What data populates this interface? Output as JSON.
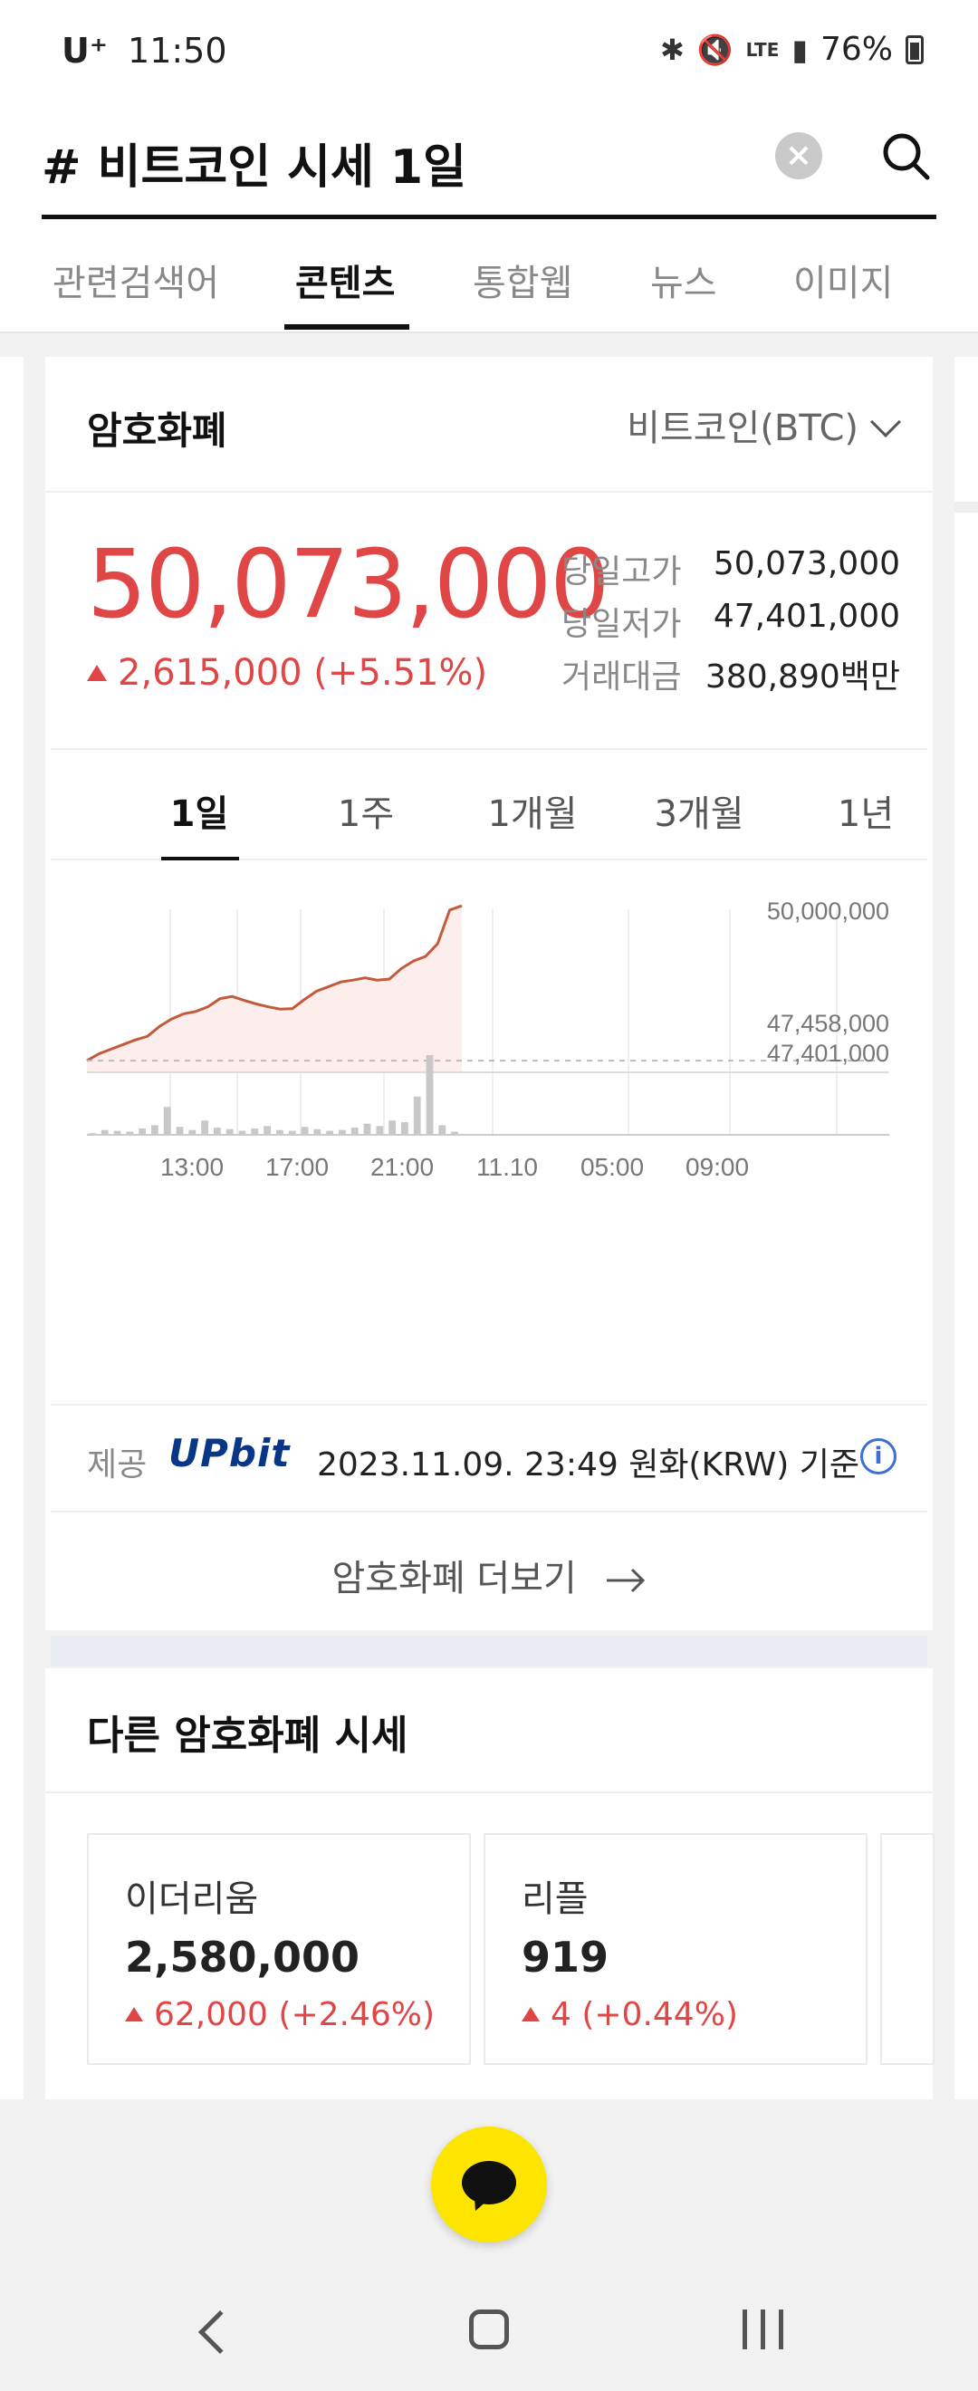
{
  "status_bar": {
    "carrier": "U⁺",
    "time": "11:50",
    "network": "LTE",
    "battery": "76%"
  },
  "search": {
    "query": "# 비트코인 시세 1일"
  },
  "tabs": [
    {
      "label": "관련검색어"
    },
    {
      "label": "콘텐츠"
    },
    {
      "label": "통합웹"
    },
    {
      "label": "뉴스"
    },
    {
      "label": "이미지"
    }
  ],
  "crypto": {
    "title": "암호화폐",
    "selected_coin": "비트코인(BTC)",
    "price": "50,073,000",
    "change": "2,615,000 (+5.51%)",
    "stats": [
      {
        "label": "당일고가",
        "value": "50,073,000"
      },
      {
        "label": "당일저가",
        "value": "47,401,000"
      },
      {
        "label": "거래대금",
        "value": "380,890백만"
      }
    ],
    "periods": [
      {
        "label": "1일"
      },
      {
        "label": "1주"
      },
      {
        "label": "1개월"
      },
      {
        "label": "3개월"
      },
      {
        "label": "1년"
      }
    ],
    "provider_label": "제공",
    "provider_name": "UPbit",
    "provider_info": "2023.11.09. 23:49 원화(KRW) 기준",
    "more_label": "암호화폐 더보기"
  },
  "chart_data": {
    "type": "line",
    "title": "",
    "xlabel": "",
    "ylabel": "",
    "x_ticks": [
      "13:00",
      "17:00",
      "21:00",
      "11.10",
      "05:00",
      "09:00"
    ],
    "y_ticks": [
      "50,000,000",
      "47,458,000",
      "47,401,000"
    ],
    "ylim": [
      47200000,
      50200000
    ],
    "series": [
      {
        "values": [
          47401000,
          47520000,
          47600000,
          47680000,
          47760000,
          47820000,
          47990000,
          48120000,
          48210000,
          48250000,
          48330000,
          48470000,
          48510000,
          48440000,
          48380000,
          48330000,
          48290000,
          48300000,
          48460000,
          48600000,
          48680000,
          48760000,
          48790000,
          48830000,
          48790000,
          48810000,
          48990000,
          49120000,
          49200000,
          49420000,
          50000000,
          50073000
        ]
      }
    ],
    "volume": [
      2,
      6,
      5,
      4,
      8,
      12,
      35,
      10,
      6,
      18,
      9,
      7,
      5,
      8,
      11,
      6,
      5,
      10,
      7,
      5,
      6,
      9,
      14,
      11,
      18,
      16,
      48,
      100,
      12,
      4
    ],
    "colors": {
      "line": "#c45a3c",
      "fill": "#fdeeee",
      "volume": "#c8c8c8"
    }
  },
  "other_coins": {
    "title": "다른 암호화폐 시세",
    "items": [
      {
        "name": "이더리움",
        "price": "2,580,000",
        "change": "62,000 (+2.46%)"
      },
      {
        "name": "리플",
        "price": "919",
        "change": "4 (+0.44%)"
      }
    ]
  }
}
